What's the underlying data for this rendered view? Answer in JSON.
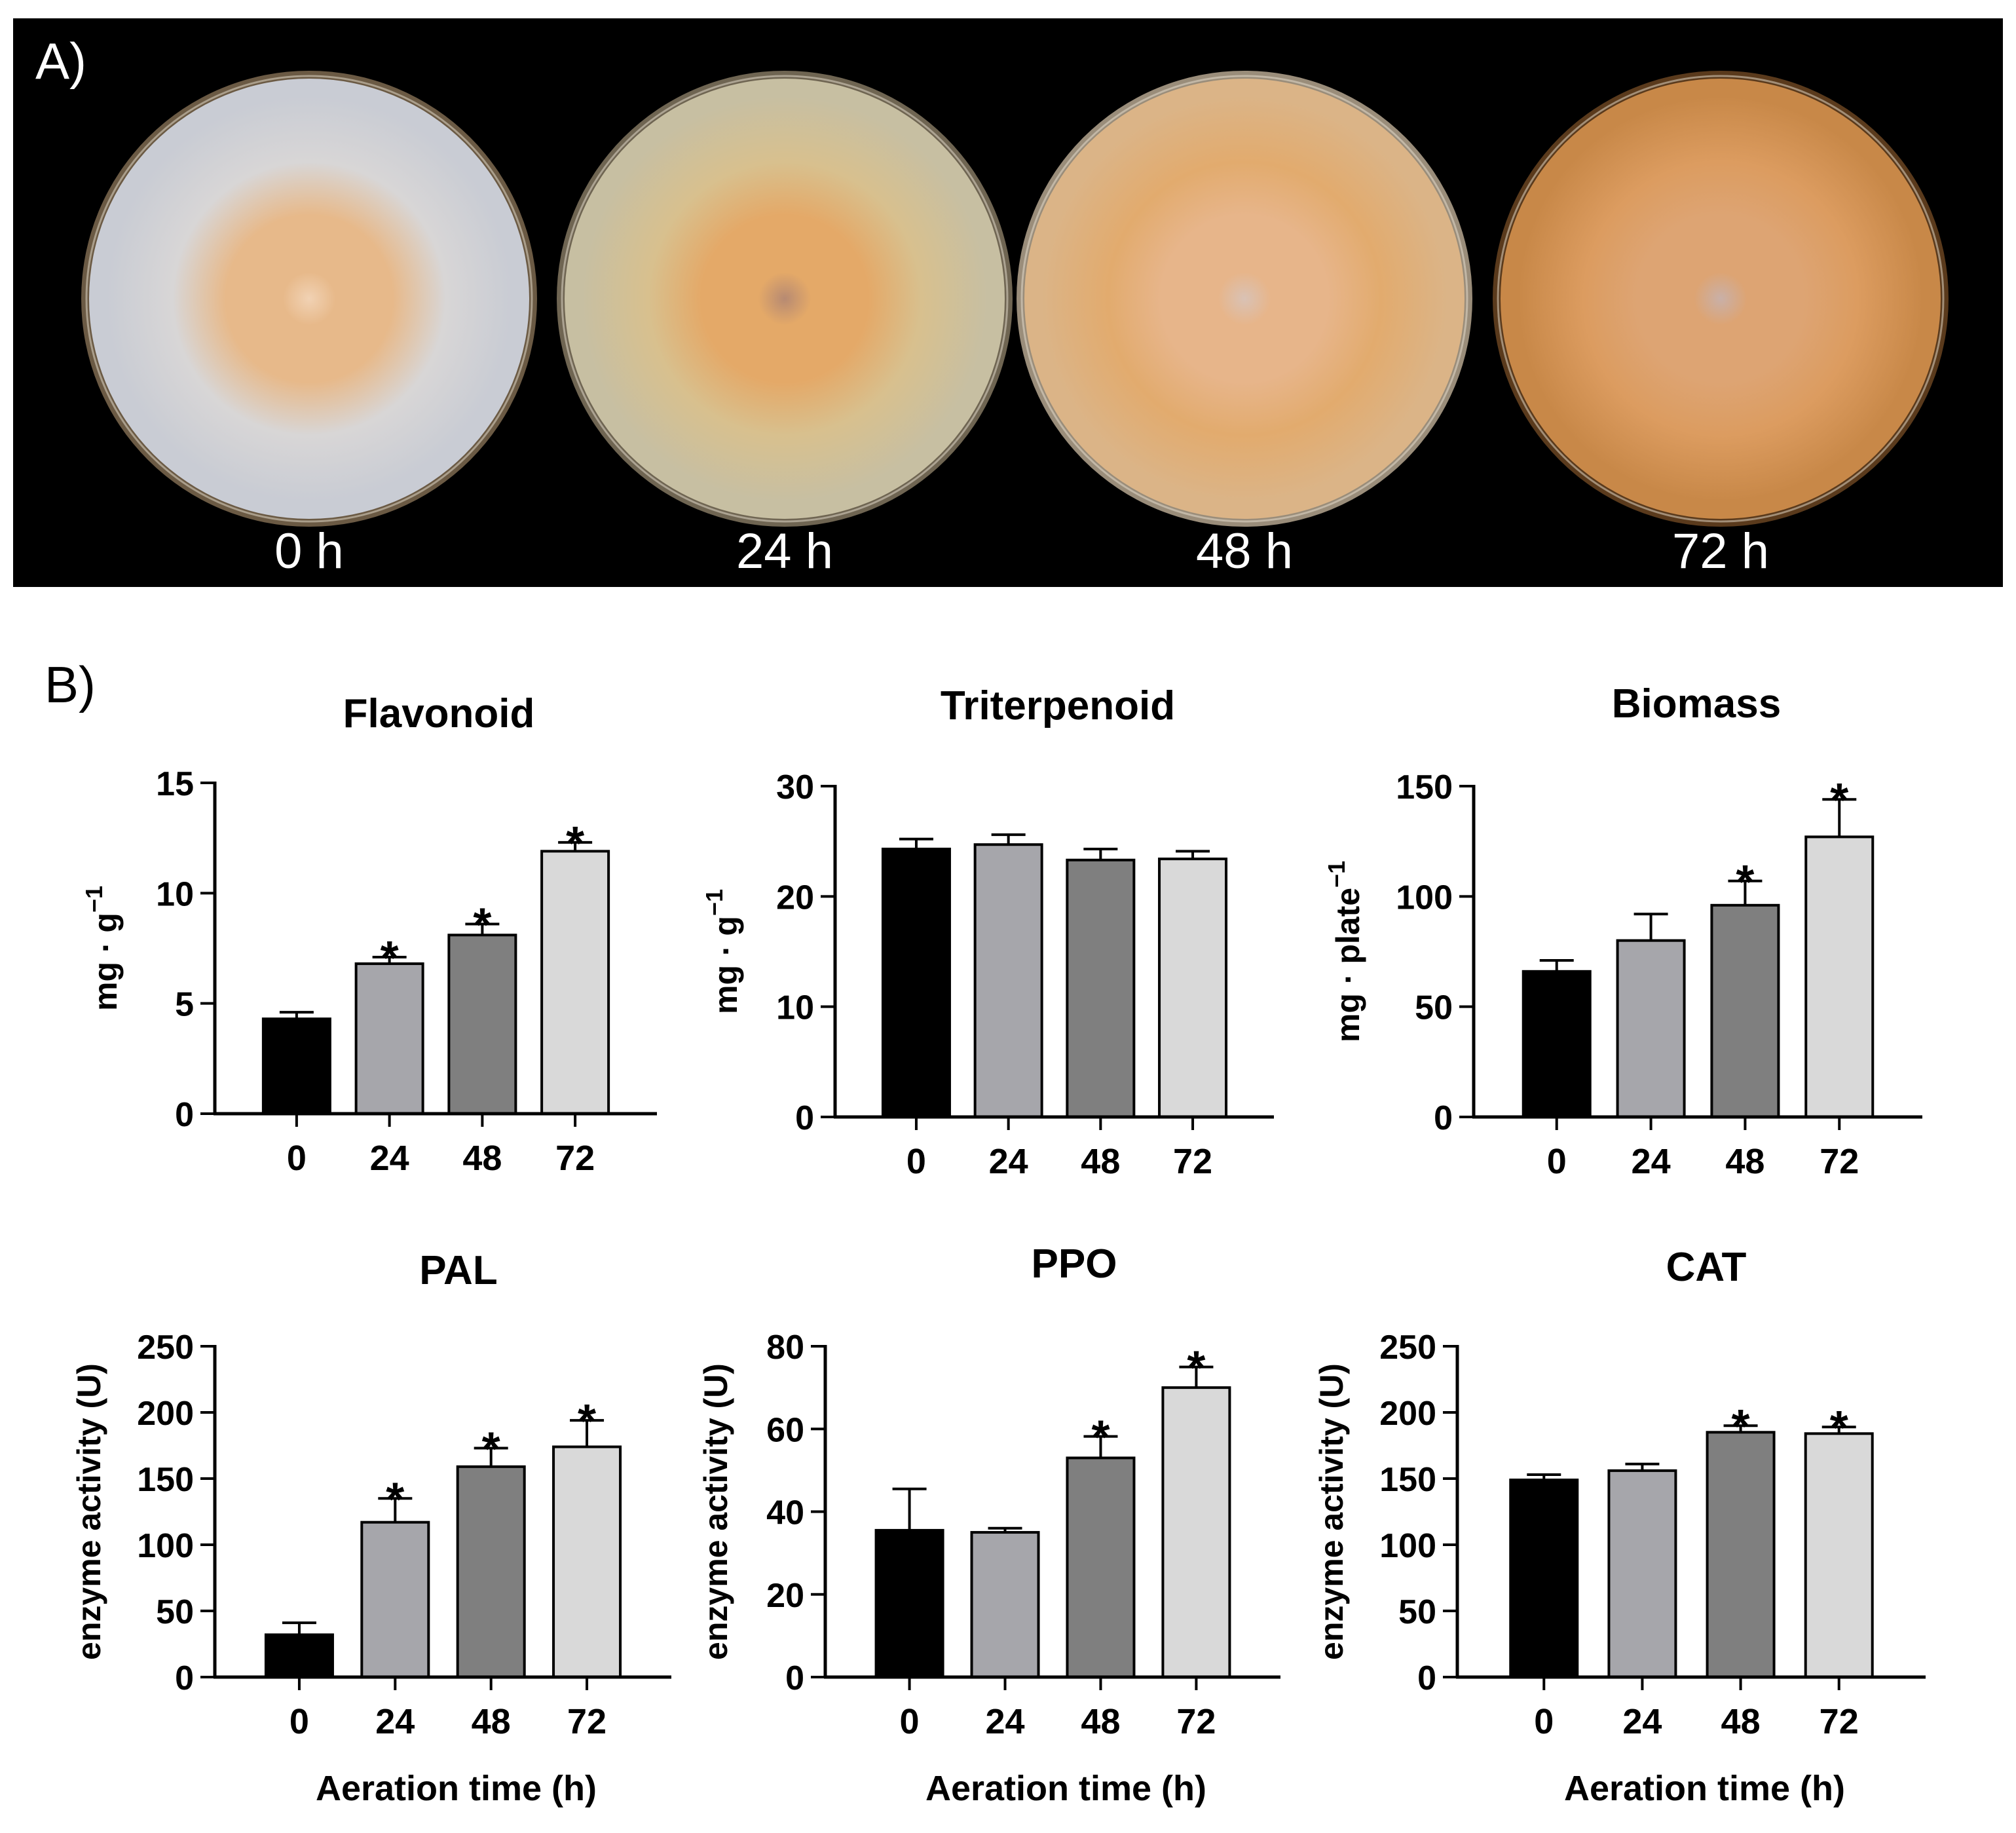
{
  "panel_a": {
    "label": "A)",
    "plates": [
      {
        "label": "0 h",
        "colors": {
          "rim": "#6b5a44",
          "edge": "#c9ccd4",
          "mid": "#d8d6d6",
          "center": "#e7b98a",
          "core": "#f1d2b4"
        }
      },
      {
        "label": "24 h",
        "colors": {
          "rim": "#6f6552",
          "edge": "#c7bfa2",
          "mid": "#d8c08e",
          "center": "#e4a968",
          "core": "#b78a72"
        }
      },
      {
        "label": "48 h",
        "colors": {
          "rim": "#9a8d7a",
          "edge": "#dbb487",
          "mid": "#e2ab6e",
          "center": "#e7b58a",
          "core": "#d9c2b5"
        }
      },
      {
        "label": "72 h",
        "colors": {
          "rim": "#5a3a1c",
          "edge": "#c88848",
          "mid": "#dc9c60",
          "center": "#dda473",
          "core": "#c9b0a8"
        }
      }
    ]
  },
  "panel_b": {
    "label": "B)"
  },
  "colors": {
    "bar_0": "#000000",
    "bar_24": "#a6a6ab",
    "bar_48": "#7f7f7f",
    "bar_72": "#d9d9d9",
    "axis": "#000000"
  },
  "chart_data": [
    {
      "type": "bar",
      "title": "Flavonoid",
      "ylabel": "mg · g",
      "ylabel_sup": "−1",
      "xlabel": "",
      "categories": [
        "0",
        "24",
        "48",
        "72"
      ],
      "values": [
        4.3,
        6.8,
        8.1,
        11.9
      ],
      "errors": [
        0.3,
        0.3,
        0.5,
        0.4
      ],
      "significant": [
        false,
        true,
        true,
        true
      ],
      "ylim": [
        0,
        15
      ],
      "yticks": [
        0,
        5,
        10,
        15
      ]
    },
    {
      "type": "bar",
      "title": "Triterpenoid",
      "ylabel": "mg · g",
      "ylabel_sup": "−1",
      "xlabel": "",
      "categories": [
        "0",
        "24",
        "48",
        "72"
      ],
      "values": [
        24.3,
        24.7,
        23.3,
        23.4
      ],
      "errors": [
        0.9,
        0.9,
        1.0,
        0.7
      ],
      "significant": [
        false,
        false,
        false,
        false
      ],
      "ylim": [
        0,
        30
      ],
      "yticks": [
        0,
        10,
        20,
        30
      ]
    },
    {
      "type": "bar",
      "title": "Biomass",
      "ylabel": "mg · plate",
      "ylabel_sup": "−1",
      "xlabel": "",
      "categories": [
        "0",
        "24",
        "48",
        "72"
      ],
      "values": [
        66,
        80,
        96,
        127
      ],
      "errors": [
        5,
        12,
        11,
        17
      ],
      "significant": [
        false,
        false,
        true,
        true
      ],
      "ylim": [
        0,
        150
      ],
      "yticks": [
        0,
        50,
        100,
        150
      ]
    },
    {
      "type": "bar",
      "title": "PAL",
      "ylabel": "enzyme activity (U)",
      "ylabel_sup": "",
      "xlabel": "Aeration time (h)",
      "categories": [
        "0",
        "24",
        "48",
        "72"
      ],
      "values": [
        32,
        117,
        159,
        174
      ],
      "errors": [
        9,
        18,
        14,
        20
      ],
      "significant": [
        false,
        true,
        true,
        true
      ],
      "ylim": [
        0,
        250
      ],
      "yticks": [
        0,
        50,
        100,
        150,
        200,
        250
      ]
    },
    {
      "type": "bar",
      "title": "PPO",
      "ylabel": "enzyme activity (U)",
      "ylabel_sup": "",
      "xlabel": "Aeration time (h)",
      "categories": [
        "0",
        "24",
        "48",
        "72"
      ],
      "values": [
        35.5,
        35,
        53,
        70
      ],
      "errors": [
        10,
        1,
        5.2,
        5
      ],
      "significant": [
        false,
        false,
        true,
        true
      ],
      "ylim": [
        0,
        80
      ],
      "yticks": [
        0,
        20,
        40,
        60,
        80
      ]
    },
    {
      "type": "bar",
      "title": "CAT",
      "ylabel": "enzyme activity (U)",
      "ylabel_sup": "",
      "xlabel": "Aeration time (h)",
      "categories": [
        "0",
        "24",
        "48",
        "72"
      ],
      "values": [
        149,
        156,
        185,
        184
      ],
      "errors": [
        4,
        5,
        5,
        5
      ],
      "significant": [
        false,
        false,
        true,
        true
      ],
      "ylim": [
        0,
        250
      ],
      "yticks": [
        0,
        50,
        100,
        150,
        200,
        250
      ]
    }
  ],
  "significance_marker": "*"
}
